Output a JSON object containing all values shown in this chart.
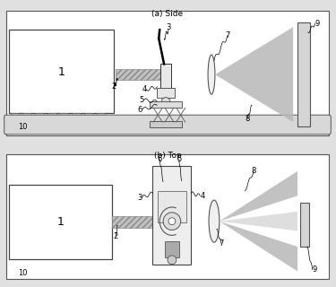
{
  "fig_bg": "#e0e0e0",
  "panel_bg": "#ffffff",
  "label_a": "(a) Side",
  "label_b": "(b) Top",
  "beam_color": "#b8b8b8",
  "fiber_color": "#c0c0c0",
  "wall_color": "#d0d0d0",
  "box_color": "#f0f0f0",
  "base_color": "#e0e0e0"
}
